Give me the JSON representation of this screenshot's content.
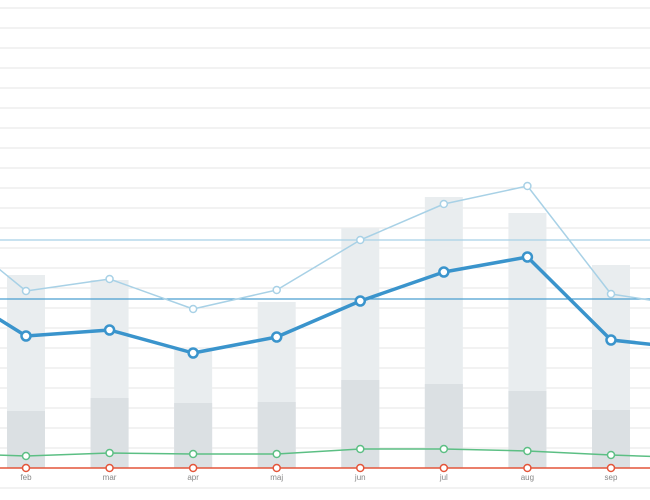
{
  "chart_data": {
    "type": "combo",
    "categories": [
      null,
      "feb",
      "mar",
      "apr",
      "maj",
      "jun",
      "jul",
      "aug",
      "sep",
      null
    ],
    "ylim": [
      -1.6,
      23.4
    ],
    "yticks": [
      -1,
      0,
      1,
      2,
      3,
      4,
      5,
      6,
      7,
      8,
      9,
      10,
      11,
      12,
      13,
      14,
      15,
      16,
      17,
      18,
      19,
      20,
      21,
      22,
      23
    ],
    "grid": true,
    "reference_lines": [
      {
        "value": 11.4,
        "color": "#a8d1e6"
      },
      {
        "value": 8.45,
        "color": "#4a9fd0"
      }
    ],
    "series": [
      {
        "kind": "bar",
        "color": "#e9edef",
        "values": [
          null,
          9.65,
          9.4,
          5.9,
          8.3,
          12,
          13.55,
          12.75,
          10.15,
          null
        ]
      },
      {
        "kind": "bar",
        "color": "#dbe0e3",
        "values": [
          null,
          2.85,
          3.5,
          3.25,
          3.3,
          4.4,
          4.2,
          3.85,
          2.9,
          null
        ]
      },
      {
        "kind": "line",
        "color": "#a8d1e6",
        "width": 1.5,
        "marker": 3.5,
        "values": [
          12.25,
          8.85,
          9.45,
          7.95,
          8.9,
          11.4,
          13.2,
          14.1,
          8.7,
          8.05
        ]
      },
      {
        "kind": "line",
        "color": "#3a94cc",
        "width": 3.5,
        "marker": 4.5,
        "values": [
          9.2,
          6.6,
          6.9,
          5.75,
          6.55,
          8.35,
          9.8,
          10.55,
          6.4,
          5.95
        ]
      },
      {
        "kind": "line",
        "color": "#5cbf84",
        "width": 1.5,
        "marker": 3.5,
        "values": [
          0.75,
          0.6,
          0.75,
          0.7,
          0.7,
          0.95,
          0.95,
          0.85,
          0.65,
          0.5
        ]
      },
      {
        "kind": "line",
        "color": "#e4553a",
        "width": 1.5,
        "marker": 3.5,
        "values": [
          0,
          0,
          0,
          0,
          0,
          0,
          0,
          0,
          0,
          0
        ]
      }
    ]
  }
}
